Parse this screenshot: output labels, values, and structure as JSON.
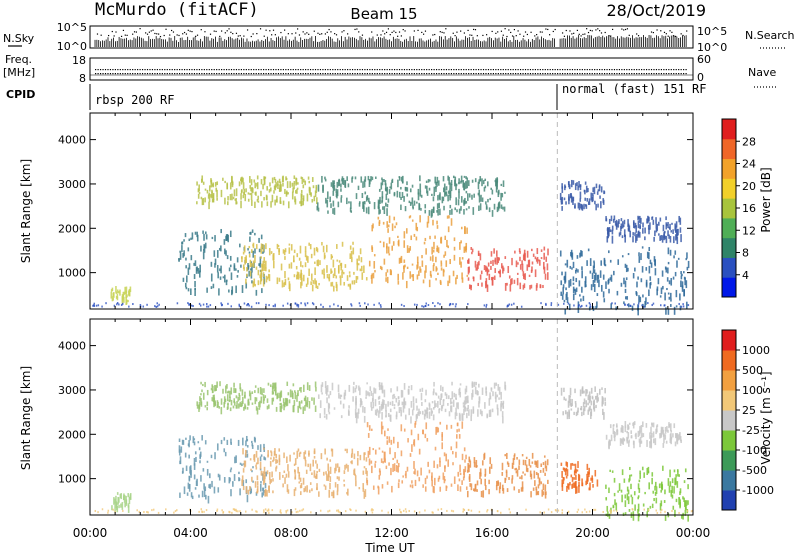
{
  "header": {
    "station": "McMurdo (fitACF)",
    "beam": "Beam 15",
    "date": "28/Oct/2019"
  },
  "status_panels": {
    "nsky_label": "N.Sky",
    "nsearch_label": "N.Search",
    "nsky_ticks_left": [
      "10^5",
      "10^0"
    ],
    "nsky_ticks_right": [
      "10^5",
      "10^0"
    ],
    "freq_label": "Freq.",
    "freq_unit": "[MHz]",
    "freq_ticks_left": [
      "18",
      "8"
    ],
    "nave_label": "Nave",
    "nave_ticks_right": [
      "60",
      "0"
    ],
    "cpid_label": "CPID",
    "cpid_segments": [
      {
        "label": "rbsp 200 RF",
        "start_hour": 0.0,
        "end_hour": 18.6
      },
      {
        "label": "normal (fast) 151 RF",
        "start_hour": 18.6,
        "end_hour": 24.0
      }
    ]
  },
  "chart_data": [
    {
      "type": "heatmap",
      "name": "power",
      "ylabel": "Slant Range [km]",
      "y_ticks": [
        1000,
        2000,
        3000,
        4000
      ],
      "ylim": [
        180,
        4600
      ],
      "xlim": [
        0,
        24
      ],
      "mode_change_hour": 18.6,
      "colorbar": {
        "label": "Power [dB]",
        "ticks": [
          "28",
          "24",
          "20",
          "16",
          "12",
          "8",
          "4"
        ],
        "colors": [
          "#0018e8",
          "#2a50c0",
          "#2f8468",
          "#4fae56",
          "#a8c43c",
          "#f2d02a",
          "#f2a22a",
          "#ef6628",
          "#e01e1e"
        ]
      },
      "scatter_regions": [
        {
          "hours": [
            0.8,
            1.6
          ],
          "ranges": [
            380,
            700
          ],
          "color": "#c8d458"
        },
        {
          "hours": [
            3.5,
            7.0
          ],
          "ranges": [
            600,
            2000
          ],
          "color": "#3a7a8a"
        },
        {
          "hours": [
            4.2,
            9.0
          ],
          "ranges": [
            2600,
            3200
          ],
          "color": "#b7c24a"
        },
        {
          "hours": [
            9.0,
            16.5
          ],
          "ranges": [
            2400,
            3200
          ],
          "color": "#4a8a7a"
        },
        {
          "hours": [
            6.0,
            11.0
          ],
          "ranges": [
            700,
            1700
          ],
          "color": "#d8c04a"
        },
        {
          "hours": [
            11.0,
            15.0
          ],
          "ranges": [
            800,
            2300
          ],
          "color": "#eaa040"
        },
        {
          "hours": [
            15.0,
            18.2
          ],
          "ranges": [
            700,
            1600
          ],
          "color": "#e85a50"
        },
        {
          "hours": [
            18.7,
            20.5
          ],
          "ranges": [
            2500,
            3100
          ],
          "color": "#3a5aa8"
        },
        {
          "hours": [
            20.5,
            23.5
          ],
          "ranges": [
            1800,
            2300
          ],
          "color": "#3a5aa8"
        },
        {
          "hours": [
            18.7,
            23.8
          ],
          "ranges": [
            180,
            1600
          ],
          "color": "#2f6a9a"
        }
      ]
    },
    {
      "type": "heatmap",
      "name": "velocity",
      "ylabel": "Slant Range [km]",
      "xlabel": "Time UT",
      "x_ticks": [
        "00:00",
        "04:00",
        "08:00",
        "12:00",
        "16:00",
        "20:00",
        "00:00"
      ],
      "y_ticks": [
        1000,
        2000,
        3000,
        4000
      ],
      "ylim": [
        180,
        4600
      ],
      "xlim": [
        0,
        24
      ],
      "mode_change_hour": 18.6,
      "colorbar": {
        "label": "Velocity [m s⁻¹]",
        "ticks": [
          "1000",
          "500",
          "100",
          "25",
          "-25",
          "-100",
          "-500",
          "-1000"
        ],
        "colors": [
          "#2040b0",
          "#3a78a0",
          "#3c9a58",
          "#7cc83a",
          "#c8c8c8",
          "#f2c878",
          "#f2a040",
          "#ef6a20",
          "#e01e1e"
        ]
      },
      "scatter_regions": [
        {
          "hours": [
            0.8,
            1.6
          ],
          "ranges": [
            380,
            700
          ],
          "color": "#a8d488"
        },
        {
          "hours": [
            3.5,
            7.0
          ],
          "ranges": [
            600,
            2000
          ],
          "color": "#6a9ab0"
        },
        {
          "hours": [
            4.2,
            9.0
          ],
          "ranges": [
            2600,
            3200
          ],
          "color": "#9ac470"
        },
        {
          "hours": [
            9.0,
            16.5
          ],
          "ranges": [
            2400,
            3200
          ],
          "color": "#c8c8c8"
        },
        {
          "hours": [
            6.0,
            11.0
          ],
          "ranges": [
            700,
            1700
          ],
          "color": "#e8b070"
        },
        {
          "hours": [
            11.0,
            15.0
          ],
          "ranges": [
            800,
            2300
          ],
          "color": "#f0a060"
        },
        {
          "hours": [
            15.0,
            18.2
          ],
          "ranges": [
            700,
            1600
          ],
          "color": "#e8904a"
        },
        {
          "hours": [
            18.7,
            20.5
          ],
          "ranges": [
            2500,
            3100
          ],
          "color": "#c0c0c0"
        },
        {
          "hours": [
            20.5,
            23.5
          ],
          "ranges": [
            1800,
            2300
          ],
          "color": "#c8c8c8"
        },
        {
          "hours": [
            18.7,
            20.2
          ],
          "ranges": [
            800,
            1400
          ],
          "color": "#ef6a20"
        },
        {
          "hours": [
            20.5,
            23.8
          ],
          "ranges": [
            180,
            1300
          ],
          "color": "#7cc83a"
        }
      ]
    }
  ]
}
